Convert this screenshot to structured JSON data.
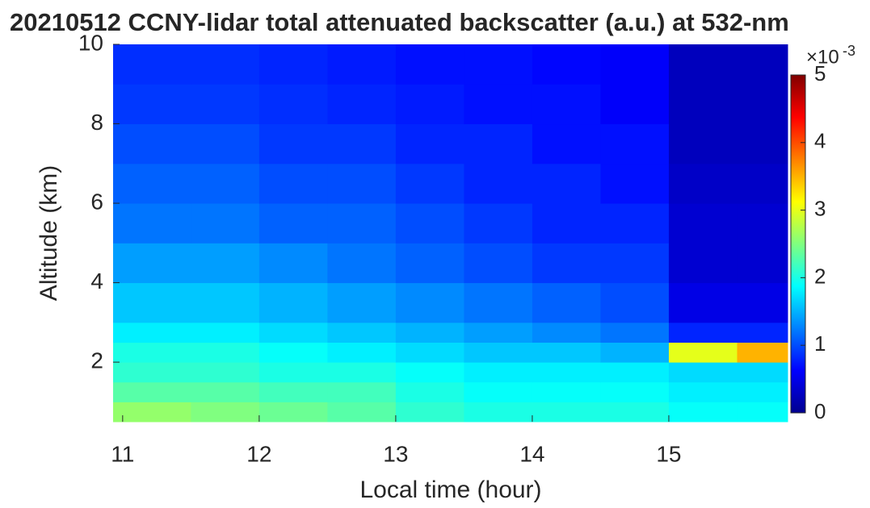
{
  "chart_data": {
    "type": "heatmap",
    "title": "20210512 CCNY-lidar total attenuated backscatter (a.u.) at 532-nm",
    "xlabel": "Local time (hour)",
    "ylabel": "Altitude (km)",
    "x_edges": [
      10.93,
      11.5,
      12,
      12.5,
      13,
      13.5,
      14,
      14.5,
      15,
      15.5,
      15.87
    ],
    "y_edges": [
      0.5,
      1,
      1.5,
      2,
      2.5,
      3,
      4,
      5,
      6,
      7,
      8,
      9,
      10
    ],
    "z": [
      [
        2.6,
        2.5,
        2.4,
        2.3,
        2.1,
        2.0,
        2.0,
        2.0,
        1.9,
        1.9
      ],
      [
        2.3,
        2.3,
        2.2,
        2.2,
        2.0,
        1.9,
        1.9,
        1.9,
        1.8,
        1.8
      ],
      [
        2.1,
        2.1,
        2.0,
        2.0,
        1.9,
        1.8,
        1.8,
        1.8,
        1.7,
        1.7
      ],
      [
        2.0,
        2.0,
        1.9,
        1.8,
        1.7,
        1.6,
        1.6,
        1.5,
        3.0,
        3.5
      ],
      [
        1.8,
        1.8,
        1.7,
        1.6,
        1.5,
        1.4,
        1.3,
        1.2,
        0.8,
        0.8
      ],
      [
        1.6,
        1.6,
        1.5,
        1.4,
        1.3,
        1.2,
        1.1,
        1.0,
        0.5,
        0.5
      ],
      [
        1.4,
        1.4,
        1.3,
        1.2,
        1.1,
        1.0,
        0.9,
        0.9,
        0.4,
        0.4
      ],
      [
        1.2,
        1.2,
        1.1,
        1.1,
        1.0,
        0.9,
        0.8,
        0.8,
        0.4,
        0.4
      ],
      [
        1.1,
        1.1,
        1.0,
        1.0,
        0.9,
        0.8,
        0.8,
        0.7,
        0.35,
        0.35
      ],
      [
        1.0,
        1.0,
        0.9,
        0.9,
        0.8,
        0.8,
        0.7,
        0.7,
        0.3,
        0.3
      ],
      [
        0.9,
        0.9,
        0.85,
        0.8,
        0.75,
        0.7,
        0.7,
        0.6,
        0.3,
        0.3
      ],
      [
        0.85,
        0.85,
        0.8,
        0.75,
        0.7,
        0.7,
        0.65,
        0.6,
        0.3,
        0.3
      ]
    ],
    "xlim": [
      10.93,
      15.87
    ],
    "xticks": [
      11,
      12,
      13,
      14,
      15
    ],
    "ylim": [
      0.5,
      10
    ],
    "yticks": [
      2,
      4,
      6,
      8,
      10
    ],
    "colormap": "jet",
    "clim": [
      0,
      5
    ],
    "cticks": [
      0,
      1,
      2,
      3,
      4,
      5
    ],
    "colorbar_label": "×10",
    "colorbar_exponent": "-3"
  }
}
